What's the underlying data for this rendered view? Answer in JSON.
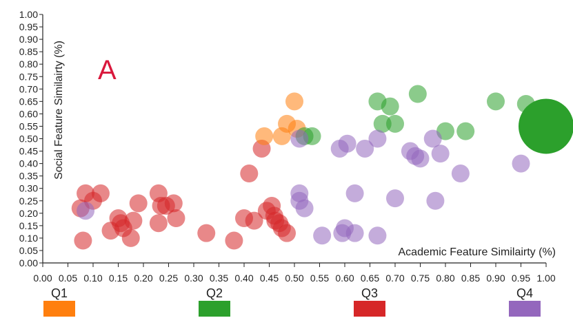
{
  "chart_data": {
    "type": "scatter",
    "panel_label": "A",
    "xlabel": "Academic Feature Similairty (%)",
    "ylabel": "Social Feature Similairty (%)",
    "xlim": [
      0,
      1
    ],
    "ylim": [
      0,
      1
    ],
    "x_ticks": [
      "0.00",
      "0.05",
      "0.10",
      "0.15",
      "0.20",
      "0.25",
      "0.30",
      "0.35",
      "0.40",
      "0.45",
      "0.50",
      "0.55",
      "0.60",
      "0.65",
      "0.70",
      "0.75",
      "0.80",
      "0.85",
      "0.90",
      "0.95",
      "1.00"
    ],
    "y_ticks": [
      "0.00",
      "0.05",
      "0.10",
      "0.15",
      "0.20",
      "0.25",
      "0.30",
      "0.35",
      "0.40",
      "0.45",
      "0.50",
      "0.55",
      "0.60",
      "0.65",
      "0.70",
      "0.75",
      "0.80",
      "0.85",
      "0.90",
      "0.95",
      "1.00"
    ],
    "legend": [
      {
        "label": "Q1",
        "color": "#ff7f0e"
      },
      {
        "label": "Q2",
        "color": "#2ca02c"
      },
      {
        "label": "Q3",
        "color": "#d62728"
      },
      {
        "label": "Q4",
        "color": "#9467bd"
      }
    ],
    "series": [
      {
        "group": "Q3",
        "color": "#d62728",
        "points": [
          [
            0.075,
            0.22
          ],
          [
            0.085,
            0.28
          ],
          [
            0.1,
            0.25
          ],
          [
            0.115,
            0.28
          ],
          [
            0.08,
            0.09
          ],
          [
            0.135,
            0.13
          ],
          [
            0.15,
            0.18
          ],
          [
            0.155,
            0.16
          ],
          [
            0.16,
            0.14
          ],
          [
            0.18,
            0.17
          ],
          [
            0.19,
            0.24
          ],
          [
            0.175,
            0.1
          ],
          [
            0.23,
            0.28
          ],
          [
            0.235,
            0.23
          ],
          [
            0.245,
            0.23
          ],
          [
            0.23,
            0.16
          ],
          [
            0.26,
            0.24
          ],
          [
            0.265,
            0.18
          ],
          [
            0.325,
            0.12
          ],
          [
            0.38,
            0.09
          ],
          [
            0.4,
            0.18
          ],
          [
            0.41,
            0.36
          ],
          [
            0.42,
            0.17
          ],
          [
            0.435,
            0.46
          ],
          [
            0.445,
            0.21
          ],
          [
            0.455,
            0.23
          ],
          [
            0.46,
            0.19
          ],
          [
            0.462,
            0.17
          ],
          [
            0.47,
            0.16
          ],
          [
            0.475,
            0.14
          ],
          [
            0.485,
            0.12
          ]
        ]
      },
      {
        "group": "Q1",
        "color": "#ff7f0e",
        "points": [
          [
            0.44,
            0.51
          ],
          [
            0.475,
            0.51
          ],
          [
            0.485,
            0.56
          ],
          [
            0.5,
            0.65
          ],
          [
            0.505,
            0.54
          ]
        ]
      },
      {
        "group": "Q2",
        "color": "#2ca02c",
        "points": [
          [
            0.52,
            0.51
          ],
          [
            0.535,
            0.51
          ],
          [
            0.665,
            0.65
          ],
          [
            0.675,
            0.56
          ],
          [
            0.69,
            0.63
          ],
          [
            0.7,
            0.56
          ],
          [
            0.745,
            0.68
          ],
          [
            0.8,
            0.53
          ],
          [
            0.84,
            0.53
          ],
          [
            0.9,
            0.65
          ],
          [
            0.96,
            0.64
          ],
          [
            1.0,
            0.55,
            "large"
          ]
        ]
      },
      {
        "group": "Q4",
        "color": "#9467bd",
        "points": [
          [
            0.085,
            0.21
          ],
          [
            0.51,
            0.5
          ],
          [
            0.51,
            0.28
          ],
          [
            0.51,
            0.25
          ],
          [
            0.52,
            0.22
          ],
          [
            0.555,
            0.11
          ],
          [
            0.59,
            0.46
          ],
          [
            0.595,
            0.12
          ],
          [
            0.6,
            0.14
          ],
          [
            0.605,
            0.48
          ],
          [
            0.62,
            0.12
          ],
          [
            0.62,
            0.28
          ],
          [
            0.64,
            0.46
          ],
          [
            0.665,
            0.5
          ],
          [
            0.665,
            0.11
          ],
          [
            0.7,
            0.26
          ],
          [
            0.73,
            0.45
          ],
          [
            0.74,
            0.43
          ],
          [
            0.75,
            0.42
          ],
          [
            0.775,
            0.5
          ],
          [
            0.78,
            0.25
          ],
          [
            0.79,
            0.44
          ],
          [
            0.83,
            0.36
          ],
          [
            0.95,
            0.4
          ]
        ]
      }
    ]
  }
}
